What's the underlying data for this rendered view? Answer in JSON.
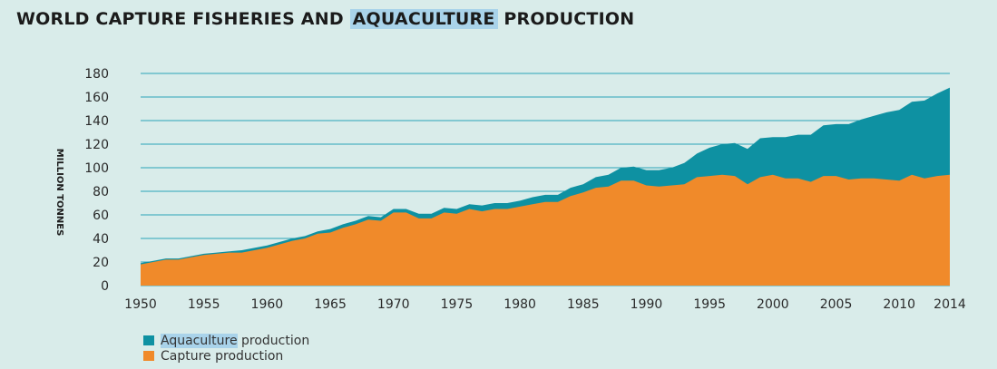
{
  "title": {
    "part1": "WORLD CAPTURE FISHERIES AND ",
    "highlight": "AQUACULTURE",
    "part2": " PRODUCTION"
  },
  "colors": {
    "background": "#d9ecea",
    "aquaculture": "#0e91a2",
    "capture": "#f08a2a",
    "gridline": "#2aa4b8",
    "highlight": "#a9d3ea"
  },
  "legend": {
    "aquaculture_highlight": "Aquaculture",
    "aquaculture_rest": " production",
    "capture": "Capture production"
  },
  "chart_data": {
    "type": "area",
    "stacked": true,
    "title": "WORLD CAPTURE FISHERIES AND AQUACULTURE PRODUCTION",
    "xlabel": "",
    "ylabel": "MILLION TONNES",
    "xlim": [
      1950,
      2014
    ],
    "ylim": [
      0,
      180
    ],
    "x_ticks": [
      "1950",
      "1955",
      "1960",
      "1965",
      "1970",
      "1975",
      "1980",
      "1985",
      "1990",
      "1995",
      "2000",
      "2005",
      "2010",
      "2014"
    ],
    "y_ticks": [
      "0",
      "20",
      "40",
      "60",
      "80",
      "100",
      "120",
      "140",
      "160",
      "180"
    ],
    "grid": "horizontal",
    "legend_position": "bottom-left",
    "x": [
      1950,
      1951,
      1952,
      1953,
      1954,
      1955,
      1956,
      1957,
      1958,
      1959,
      1960,
      1961,
      1962,
      1963,
      1964,
      1965,
      1966,
      1967,
      1968,
      1969,
      1970,
      1971,
      1972,
      1973,
      1974,
      1975,
      1976,
      1977,
      1978,
      1979,
      1980,
      1981,
      1982,
      1983,
      1984,
      1985,
      1986,
      1987,
      1988,
      1989,
      1990,
      1991,
      1992,
      1993,
      1994,
      1995,
      1996,
      1997,
      1998,
      1999,
      2000,
      2001,
      2002,
      2003,
      2004,
      2005,
      2006,
      2007,
      2008,
      2009,
      2010,
      2011,
      2012,
      2013,
      2014
    ],
    "series": [
      {
        "name": "Capture production",
        "values": [
          18,
          20,
          22,
          22,
          24,
          26,
          27,
          28,
          28,
          30,
          32,
          35,
          38,
          40,
          44,
          45,
          49,
          52,
          56,
          55,
          62,
          62,
          57,
          57,
          62,
          61,
          65,
          63,
          65,
          65,
          67,
          69,
          71,
          71,
          76,
          79,
          83,
          84,
          89,
          89,
          85,
          84,
          85,
          86,
          92,
          93,
          94,
          93,
          86,
          92,
          94,
          91,
          91,
          88,
          93,
          93,
          90,
          91,
          91,
          90,
          89,
          94,
          91,
          93,
          94
        ]
      },
      {
        "name": "Aquaculture production",
        "values": [
          1,
          1,
          1,
          1,
          1,
          1,
          1,
          1,
          2,
          2,
          2,
          2,
          2,
          2,
          2,
          3,
          3,
          3,
          3,
          3,
          3,
          3,
          4,
          4,
          4,
          4,
          4,
          5,
          5,
          5,
          5,
          6,
          6,
          6,
          7,
          7,
          9,
          10,
          11,
          12,
          13,
          14,
          15,
          18,
          20,
          24,
          26,
          28,
          30,
          33,
          32,
          35,
          37,
          40,
          43,
          44,
          47,
          50,
          53,
          57,
          60,
          62,
          66,
          70,
          74
        ]
      }
    ],
    "totals": [
      19,
      21,
      23,
      23,
      25,
      27,
      28,
      29,
      30,
      32,
      34,
      37,
      40,
      42,
      46,
      48,
      52,
      55,
      59,
      58,
      65,
      65,
      61,
      61,
      66,
      65,
      69,
      68,
      70,
      70,
      72,
      75,
      77,
      77,
      83,
      86,
      92,
      94,
      100,
      101,
      98,
      98,
      100,
      104,
      112,
      117,
      120,
      121,
      116,
      125,
      126,
      126,
      128,
      128,
      136,
      137,
      137,
      141,
      144,
      147,
      149,
      156,
      157,
      163,
      168
    ]
  }
}
